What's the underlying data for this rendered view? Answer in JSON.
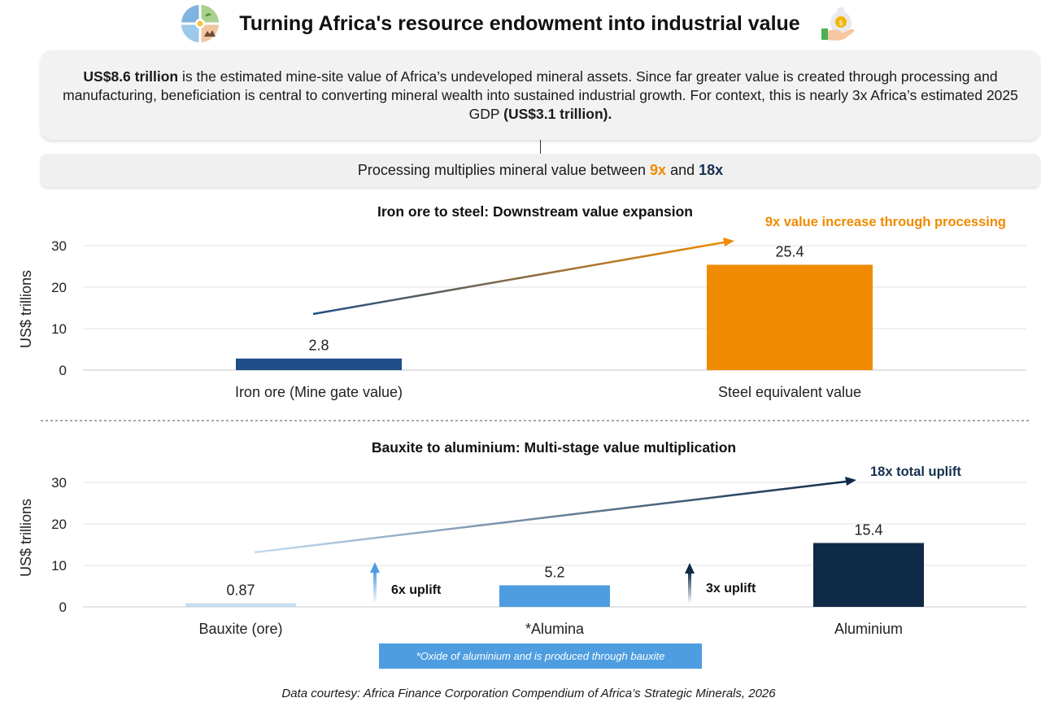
{
  "header": {
    "title": "Turning Africa's resource endowment into industrial value",
    "left_icon": "globe-resources-icon",
    "right_icon": "hand-money-bag-icon"
  },
  "intro": {
    "highlight_value": "US$8.6 trillion",
    "text": " is the estimated mine-site value of Africa’s undeveloped mineral assets. Since far greater value is created through processing and manufacturing, beneficiation is central to converting mineral wealth into sustained industrial growth. For context, this is nearly 3x Africa’s estimated 2025 GDP ",
    "gdp_value": "(US$3.1 trillion)."
  },
  "multiplier": {
    "prefix": "Processing multiplies mineral value between ",
    "low": "9x",
    "middle": " and ",
    "high": "18x"
  },
  "colors": {
    "iron_ore": "#1f4e88",
    "steel": "#f08a00",
    "bauxite": "#c6ddf0",
    "alumina": "#4d9de0",
    "aluminium": "#0f2a47",
    "orange_text": "#f08a00",
    "navy_text": "#16304f"
  },
  "chart_data": [
    {
      "type": "bar",
      "title": "Iron ore to steel: Downstream value expansion",
      "ylabel": "US$ trillions",
      "ylim": [
        0,
        30
      ],
      "yticks": [
        0,
        10,
        20,
        30
      ],
      "grid": true,
      "categories": [
        "Iron ore (Mine gate value)",
        "Steel equivalent value"
      ],
      "values": [
        2.8,
        25.4
      ],
      "value_labels": [
        "2.8",
        "25.4"
      ],
      "annotations": [
        {
          "text": "9x value increase through processing",
          "color": "#f08a00"
        }
      ]
    },
    {
      "type": "bar",
      "title": "Bauxite to aluminium: Multi-stage value multiplication",
      "ylabel": "US$ trillions",
      "ylim": [
        0,
        30
      ],
      "yticks": [
        0,
        10,
        20,
        30
      ],
      "grid": true,
      "categories": [
        "Bauxite (ore)",
        "*Alumina",
        "Aluminium"
      ],
      "values": [
        0.87,
        5.2,
        15.4
      ],
      "value_labels": [
        "0.87",
        "5.2",
        "15.4"
      ],
      "annotations": [
        {
          "text": "18x total uplift",
          "color": "#16304f"
        },
        {
          "text": "6x uplift",
          "color": "#111111"
        },
        {
          "text": "3x uplift",
          "color": "#111111"
        }
      ]
    }
  ],
  "footnote": "*Oxide of aluminium and is produced through bauxite",
  "source": "Data courtesy: Africa Finance Corporation Compendium of Africa’s Strategic Minerals, 2026"
}
